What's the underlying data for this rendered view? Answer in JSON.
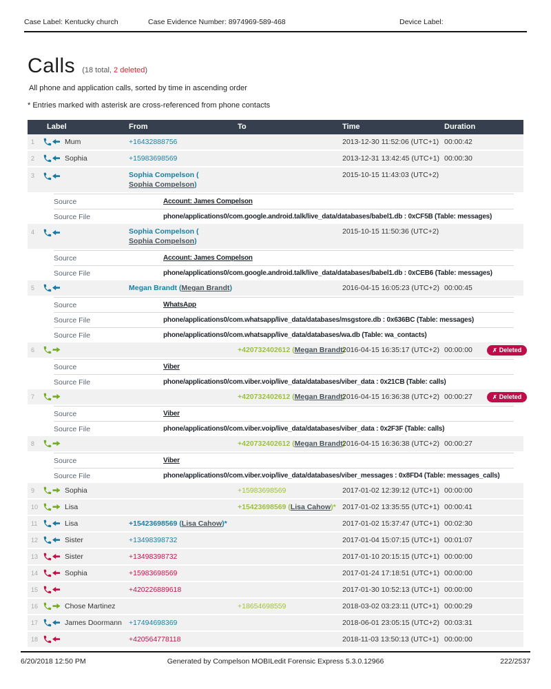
{
  "page_header": {
    "case_label": "Case Label: Kentucky church",
    "case_evidence_number": "Case Evidence Number: 8974969-589-468",
    "device_label": "Device Label:"
  },
  "title": {
    "text": "Calls",
    "count_prefix": "(18 total, ",
    "deleted_count": "2 deleted",
    "count_suffix": ")"
  },
  "subtitle": "All phone and application calls, sorted by time in ascending order",
  "note": "* Entries marked with asterisk are cross-referenced from phone contacts",
  "badges": {
    "deleted": "Deleted",
    "deleted_x_glyph": "✗"
  },
  "icons": {
    "incoming": "incoming-call-icon",
    "outgoing": "outgoing-call-icon",
    "missed": "missed-call-icon",
    "deleted_x": "x-icon"
  },
  "colors": {
    "incoming": "#1b7ea4",
    "incoming_icon": "#15799f",
    "outgoing": "#9cbf3f",
    "outgoing_icon": "#72ad21",
    "missed": "#c41248",
    "missed_icon": "#c60b45",
    "deleted_badge_bg": "#be0d48",
    "header_bar_bg": "#363f4e",
    "row_bg": "#f1f1f1",
    "deleted_count_red": "#d8262c"
  },
  "table": {
    "headers": {
      "label": "Label",
      "from": "From",
      "to": "To",
      "time": "Time",
      "duration": "Duration"
    },
    "rows": [
      {
        "num": "1",
        "direction": "incoming",
        "label": "Mum",
        "from": {
          "text": "+16432888756"
        },
        "time": "2013-12-30 11:52:06 (UTC+1)",
        "duration": "00:00:42"
      },
      {
        "num": "2",
        "direction": "incoming",
        "label": "Sophia",
        "from": {
          "text": "+15983698569"
        },
        "time": "2013-12-31 13:42:45 (UTC+1)",
        "duration": "00:00:30"
      },
      {
        "num": "3",
        "direction": "incoming",
        "label": "",
        "from": {
          "text": "Sophia Compelson (",
          "link": "Sophia Compelson",
          "suffix": ")",
          "twoline": true
        },
        "time": "2015-10-15 11:43:03 (UTC+2)",
        "duration": "",
        "details": [
          {
            "label": "Source",
            "value": "Account: James Compelson",
            "is_link": true
          },
          {
            "label": "Source File",
            "value": "phone/applications0/com.google.android.talk/live_data/databases/babel1.db : 0xCF5B (Table: messages)"
          }
        ]
      },
      {
        "num": "4",
        "direction": "incoming",
        "label": "",
        "from": {
          "text": "Sophia Compelson (",
          "link": "Sophia Compelson",
          "suffix": ")",
          "twoline": true
        },
        "time": "2015-10-15 11:50:36 (UTC+2)",
        "duration": "",
        "details": [
          {
            "label": "Source",
            "value": "Account: James Compelson",
            "is_link": true
          },
          {
            "label": "Source File",
            "value": "phone/applications0/com.google.android.talk/live_data/databases/babel1.db : 0xCEB6 (Table: messages)"
          }
        ]
      },
      {
        "num": "5",
        "direction": "incoming",
        "label": "",
        "from": {
          "text": "Megan Brandt (",
          "link": "Megan Brandt",
          "suffix": ")"
        },
        "time": "2016-04-15 16:05:23 (UTC+2)",
        "duration": "00:00:45",
        "details": [
          {
            "label": "Source",
            "value": "WhatsApp",
            "is_link": true
          },
          {
            "label": "Source File",
            "value": "phone/applications0/com.whatsapp/live_data/databases/msgstore.db : 0x636BC (Table: messages)"
          },
          {
            "label": "Source File",
            "value": "phone/applications0/com.whatsapp/live_data/databases/wa.db (Table: wa_contacts)"
          }
        ]
      },
      {
        "num": "6",
        "direction": "outgoing",
        "label": "",
        "deleted": true,
        "to": {
          "text": "+420732402612 (",
          "link": "Megan Brandt",
          "suffix": ")"
        },
        "time": "2016-04-15 16:35:17 (UTC+2)",
        "duration": "00:00:00",
        "details": [
          {
            "label": "Source",
            "value": "Viber",
            "is_link": true
          },
          {
            "label": "Source File",
            "value": "phone/applications0/com.viber.voip/live_data/databases/viber_data : 0x21CB (Table: calls)"
          }
        ]
      },
      {
        "num": "7",
        "direction": "outgoing",
        "label": "",
        "deleted": true,
        "to": {
          "text": "+420732402612 (",
          "link": "Megan Brandt",
          "suffix": ")"
        },
        "time": "2016-04-15 16:36:38 (UTC+2)",
        "duration": "00:00:27",
        "details": [
          {
            "label": "Source",
            "value": "Viber",
            "is_link": true
          },
          {
            "label": "Source File",
            "value": "phone/applications0/com.viber.voip/live_data/databases/viber_data : 0x2F3F (Table: calls)"
          }
        ]
      },
      {
        "num": "8",
        "direction": "outgoing",
        "label": "",
        "to": {
          "text": "+420732402612 (",
          "link": "Megan Brandt",
          "suffix": ")"
        },
        "time": "2016-04-15 16:36:38 (UTC+2)",
        "duration": "00:00:27",
        "details": [
          {
            "label": "Source",
            "value": "Viber",
            "is_link": true
          },
          {
            "label": "Source File",
            "value": "phone/applications0/com.viber.voip/live_data/databases/viber_messages : 0x8FD4 (Table: messages_calls)"
          }
        ]
      },
      {
        "num": "9",
        "direction": "outgoing",
        "label": "Sophia",
        "to": {
          "text": "+15983698569"
        },
        "time": "2017-01-02 12:39:12 (UTC+1)",
        "duration": "00:00:00"
      },
      {
        "num": "10",
        "direction": "outgoing",
        "label": "Lisa",
        "to": {
          "text": "+15423698569 (",
          "link": "Lisa Cahow",
          "suffix": ")*"
        },
        "time": "2017-01-02 13:35:55 (UTC+1)",
        "duration": "00:00:41"
      },
      {
        "num": "11",
        "direction": "incoming",
        "label": "Lisa",
        "from": {
          "text": "+15423698569 (",
          "link": "Lisa Cahow",
          "suffix": ")*"
        },
        "time": "2017-01-02 15:37:47 (UTC+1)",
        "duration": "00:02:30"
      },
      {
        "num": "12",
        "direction": "incoming",
        "label": "Sister",
        "from": {
          "text": "+13498398732"
        },
        "time": "2017-01-04 15:07:15 (UTC+1)",
        "duration": "00:01:07"
      },
      {
        "num": "13",
        "direction": "missed",
        "label": "Sister",
        "from": {
          "text": "+13498398732"
        },
        "time": "2017-01-10 20:15:15 (UTC+1)",
        "duration": "00:00:00"
      },
      {
        "num": "14",
        "direction": "missed",
        "label": "Sophia",
        "from": {
          "text": "+15983698569"
        },
        "time": "2017-01-24 17:18:51 (UTC+1)",
        "duration": "00:00:00"
      },
      {
        "num": "15",
        "direction": "missed",
        "label": "",
        "from": {
          "text": "+420226889618"
        },
        "time": "2017-01-30 10:52:13 (UTC+1)",
        "duration": "00:00:00"
      },
      {
        "num": "16",
        "direction": "outgoing",
        "label": "Chose Martinez",
        "to": {
          "text": "+18654698559"
        },
        "time": "2018-03-02 03:23:11 (UTC+1)",
        "duration": "00:00:29"
      },
      {
        "num": "17",
        "direction": "incoming",
        "label": "James Doormann",
        "from": {
          "text": "+17494698369"
        },
        "time": "2018-06-01 23:05:15 (UTC+2)",
        "duration": "00:03:31"
      },
      {
        "num": "18",
        "direction": "missed",
        "label": "",
        "from": {
          "text": "+420564778118"
        },
        "time": "2018-11-03 13:50:13 (UTC+1)",
        "duration": "00:00:00"
      }
    ]
  },
  "footer": {
    "date": "6/20/2018 12:50 PM",
    "generator": "Generated by Compelson MOBILedit Forensic Express 5.3.0.12966",
    "page": "222/2537"
  }
}
